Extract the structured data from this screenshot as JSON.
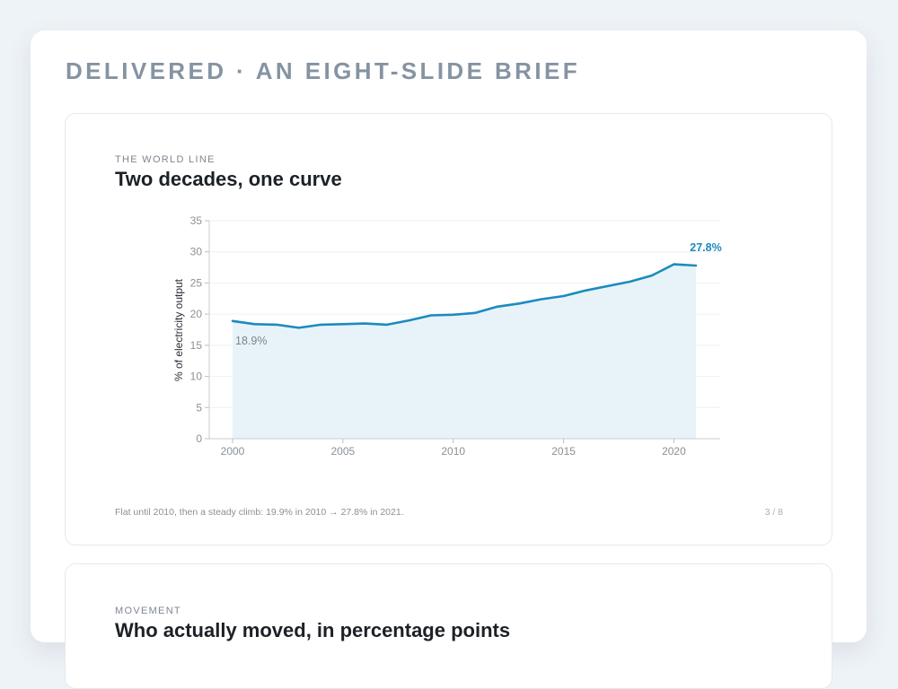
{
  "page": {
    "heading": "DELIVERED · AN EIGHT-SLIDE BRIEF"
  },
  "slides": [
    {
      "eyebrow": "THE WORLD LINE",
      "title": "Two decades, one curve",
      "caption": "Flat until 2010, then a steady climb: 19.9% in 2010 → 27.8% in 2021.",
      "pager": "3 / 8"
    },
    {
      "eyebrow": "MOVEMENT",
      "title": "Who actually moved, in percentage points"
    }
  ],
  "chart_data": {
    "type": "area",
    "x": [
      2000,
      2001,
      2002,
      2003,
      2004,
      2005,
      2006,
      2007,
      2008,
      2009,
      2010,
      2011,
      2012,
      2013,
      2014,
      2015,
      2016,
      2017,
      2018,
      2019,
      2020,
      2021
    ],
    "series": [
      {
        "values": [
          18.9,
          18.4,
          18.3,
          17.8,
          18.3,
          18.4,
          18.5,
          18.3,
          19.0,
          19.8,
          19.9,
          20.2,
          21.2,
          21.7,
          22.4,
          22.9,
          23.8,
          24.5,
          25.2,
          26.2,
          28.0,
          27.8
        ]
      }
    ],
    "xlabel": "",
    "ylabel": "% of electricity output",
    "ylim": [
      0,
      35
    ],
    "xlim": [
      2000,
      2021
    ],
    "yticks": [
      0,
      5,
      10,
      15,
      20,
      25,
      30,
      35
    ],
    "xticks": [
      2000,
      2005,
      2010,
      2015,
      2020
    ],
    "annotations": [
      {
        "x": 2000,
        "text": "18.9%",
        "style": "start"
      },
      {
        "x": 2021,
        "text": "27.8%",
        "style": "end"
      }
    ],
    "grid": true,
    "line_color": "#1b8bbd",
    "fill_color": "#e4f1f8"
  }
}
